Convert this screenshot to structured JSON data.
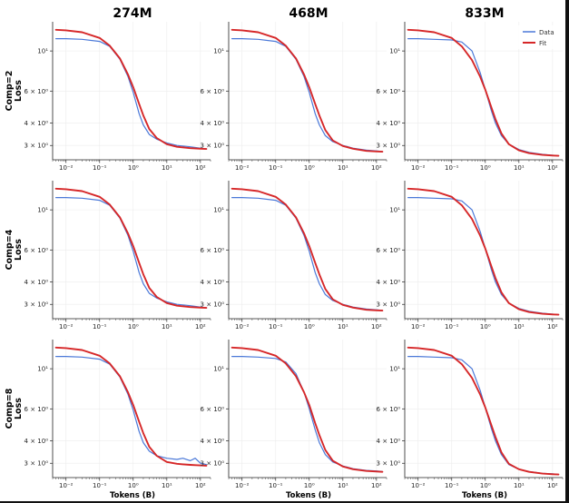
{
  "figure": {
    "column_titles": [
      "274M",
      "468M",
      "833M"
    ],
    "row_labels": [
      {
        "line1": "Comp=2",
        "line2": "Loss"
      },
      {
        "line1": "Comp=4",
        "line2": "Loss"
      },
      {
        "line1": "Comp=8",
        "line2": "Loss"
      }
    ],
    "xlabel": "Tokens (B)",
    "legend": [
      {
        "label": "Data",
        "color": "#4a78d8"
      },
      {
        "label": "Fit",
        "color": "#d62728"
      }
    ]
  },
  "chart_data": {
    "type": "line",
    "layout": "3x3 grid of subplots",
    "x_scale": "log",
    "y_scale": "log",
    "xlim": [
      0.004,
      200
    ],
    "ylim": [
      2.5,
      14.5
    ],
    "x_ticks": [
      {
        "value": 0.01,
        "label": "10⁻²"
      },
      {
        "value": 0.1,
        "label": "10⁻¹"
      },
      {
        "value": 1,
        "label": "10⁰"
      },
      {
        "value": 10,
        "label": "10¹"
      },
      {
        "value": 100,
        "label": "10²"
      }
    ],
    "y_ticks": [
      {
        "value": 10,
        "label": "10¹"
      },
      {
        "value": 6,
        "label": "6 × 10⁰"
      },
      {
        "value": 4,
        "label": "4 × 10⁰"
      },
      {
        "value": 3,
        "label": "3 × 10⁰"
      }
    ],
    "grid": true,
    "legend_location": "top-right of top-right subplot",
    "series_colors": {
      "Data": "#4a78d8",
      "Fit": "#d62728"
    },
    "panels": [
      {
        "row": 0,
        "col": 0,
        "title": "274M",
        "ylabel": "Comp=2 Loss",
        "series": [
          {
            "name": "Data",
            "x": [
              0.005,
              0.01,
              0.03,
              0.1,
              0.2,
              0.4,
              0.7,
              1.0,
              1.5,
              2.0,
              3.0,
              5.0,
              10,
              20,
              50,
              100,
              150
            ],
            "y": [
              11.7,
              11.7,
              11.6,
              11.3,
              10.6,
              9.0,
              7.2,
              5.9,
              4.5,
              3.9,
              3.45,
              3.25,
              3.1,
              3.0,
              2.95,
              2.9,
              2.88
            ]
          },
          {
            "name": "Fit",
            "x": [
              0.005,
              0.01,
              0.03,
              0.1,
              0.2,
              0.4,
              0.7,
              1.0,
              1.5,
              2.0,
              3.0,
              5.0,
              10,
              20,
              50,
              100,
              150
            ],
            "y": [
              13.1,
              13.0,
              12.7,
              11.8,
              10.7,
              9.1,
              7.4,
              6.3,
              5.1,
              4.4,
              3.7,
              3.3,
              3.05,
              2.95,
              2.9,
              2.88,
              2.87
            ]
          }
        ]
      },
      {
        "row": 0,
        "col": 1,
        "title": "468M",
        "series": [
          {
            "name": "Data",
            "x": [
              0.005,
              0.01,
              0.03,
              0.1,
              0.2,
              0.4,
              0.7,
              1.0,
              1.5,
              2.0,
              3.0,
              5.0,
              10,
              20,
              50,
              100,
              150
            ],
            "y": [
              11.7,
              11.7,
              11.6,
              11.3,
              10.6,
              9.0,
              7.2,
              5.9,
              4.5,
              3.9,
              3.4,
              3.15,
              3.0,
              2.9,
              2.83,
              2.8,
              2.78
            ]
          },
          {
            "name": "Fit",
            "x": [
              0.005,
              0.01,
              0.03,
              0.1,
              0.2,
              0.4,
              0.7,
              1.0,
              1.5,
              2.0,
              3.0,
              5.0,
              10,
              20,
              50,
              100,
              150
            ],
            "y": [
              13.1,
              13.0,
              12.7,
              11.8,
              10.7,
              9.1,
              7.4,
              6.3,
              5.1,
              4.4,
              3.65,
              3.2,
              2.98,
              2.88,
              2.8,
              2.78,
              2.77
            ]
          }
        ]
      },
      {
        "row": 0,
        "col": 2,
        "title": "833M",
        "series": [
          {
            "name": "Data",
            "x": [
              0.005,
              0.01,
              0.03,
              0.1,
              0.2,
              0.4,
              0.7,
              1.0,
              1.5,
              2.0,
              3.0,
              5.0,
              10,
              20,
              50,
              100,
              150
            ],
            "y": [
              11.7,
              11.7,
              11.6,
              11.5,
              11.2,
              10.0,
              7.6,
              6.1,
              4.7,
              4.0,
              3.4,
              3.05,
              2.85,
              2.75,
              2.68,
              2.65,
              2.63
            ]
          },
          {
            "name": "Fit",
            "x": [
              0.005,
              0.01,
              0.03,
              0.1,
              0.2,
              0.4,
              0.7,
              1.0,
              1.5,
              2.0,
              3.0,
              5.0,
              10,
              20,
              50,
              100,
              150
            ],
            "y": [
              13.1,
              13.0,
              12.7,
              11.8,
              10.6,
              8.9,
              7.2,
              6.1,
              4.9,
              4.2,
              3.5,
              3.05,
              2.82,
              2.72,
              2.66,
              2.64,
              2.63
            ]
          }
        ]
      },
      {
        "row": 1,
        "col": 0,
        "ylabel": "Comp=4 Loss",
        "series": [
          {
            "name": "Data",
            "x": [
              0.005,
              0.01,
              0.03,
              0.1,
              0.2,
              0.4,
              0.7,
              1.0,
              1.5,
              2.0,
              3.0,
              5.0,
              10,
              20,
              50,
              100,
              150
            ],
            "y": [
              11.7,
              11.7,
              11.6,
              11.3,
              10.6,
              9.0,
              7.2,
              5.9,
              4.5,
              3.9,
              3.45,
              3.25,
              3.1,
              3.0,
              2.95,
              2.9,
              2.88
            ]
          },
          {
            "name": "Fit",
            "x": [
              0.005,
              0.01,
              0.03,
              0.1,
              0.2,
              0.4,
              0.7,
              1.0,
              1.5,
              2.0,
              3.0,
              5.0,
              10,
              20,
              50,
              100,
              150
            ],
            "y": [
              13.1,
              13.0,
              12.7,
              11.8,
              10.7,
              9.1,
              7.4,
              6.3,
              5.1,
              4.4,
              3.7,
              3.3,
              3.05,
              2.95,
              2.9,
              2.88,
              2.87
            ]
          }
        ]
      },
      {
        "row": 1,
        "col": 1,
        "series": [
          {
            "name": "Data",
            "x": [
              0.005,
              0.01,
              0.03,
              0.1,
              0.2,
              0.4,
              0.7,
              1.0,
              1.5,
              2.0,
              3.0,
              5.0,
              10,
              20,
              50,
              100,
              150
            ],
            "y": [
              11.7,
              11.7,
              11.6,
              11.3,
              10.6,
              9.0,
              7.2,
              5.9,
              4.5,
              3.9,
              3.4,
              3.15,
              3.0,
              2.9,
              2.83,
              2.8,
              2.78
            ]
          },
          {
            "name": "Fit",
            "x": [
              0.005,
              0.01,
              0.03,
              0.1,
              0.2,
              0.4,
              0.7,
              1.0,
              1.5,
              2.0,
              3.0,
              5.0,
              10,
              20,
              50,
              100,
              150
            ],
            "y": [
              13.1,
              13.0,
              12.7,
              11.8,
              10.7,
              9.1,
              7.4,
              6.3,
              5.1,
              4.4,
              3.65,
              3.2,
              2.98,
              2.88,
              2.8,
              2.78,
              2.77
            ]
          }
        ]
      },
      {
        "row": 1,
        "col": 2,
        "series": [
          {
            "name": "Data",
            "x": [
              0.005,
              0.01,
              0.03,
              0.1,
              0.2,
              0.4,
              0.7,
              1.0,
              1.5,
              2.0,
              3.0,
              5.0,
              10,
              20,
              50,
              100,
              150
            ],
            "y": [
              11.7,
              11.7,
              11.6,
              11.5,
              11.2,
              10.0,
              7.6,
              6.1,
              4.7,
              4.0,
              3.4,
              3.05,
              2.85,
              2.75,
              2.68,
              2.65,
              2.63
            ]
          },
          {
            "name": "Fit",
            "x": [
              0.005,
              0.01,
              0.03,
              0.1,
              0.2,
              0.4,
              0.7,
              1.0,
              1.5,
              2.0,
              3.0,
              5.0,
              10,
              20,
              50,
              100,
              150
            ],
            "y": [
              13.1,
              13.0,
              12.7,
              11.8,
              10.6,
              8.9,
              7.2,
              6.1,
              4.9,
              4.2,
              3.5,
              3.05,
              2.82,
              2.72,
              2.66,
              2.64,
              2.63
            ]
          }
        ]
      },
      {
        "row": 2,
        "col": 0,
        "ylabel": "Comp=8 Loss",
        "series": [
          {
            "name": "Data",
            "x": [
              0.005,
              0.01,
              0.03,
              0.1,
              0.2,
              0.4,
              0.7,
              1.0,
              1.5,
              2.0,
              3.0,
              5.0,
              10,
              20,
              30,
              50,
              70,
              100,
              150
            ],
            "y": [
              11.7,
              11.7,
              11.6,
              11.3,
              10.6,
              9.0,
              7.2,
              5.9,
              4.5,
              3.9,
              3.5,
              3.3,
              3.2,
              3.15,
              3.2,
              3.1,
              3.2,
              3.0,
              2.95
            ]
          },
          {
            "name": "Fit",
            "x": [
              0.005,
              0.01,
              0.03,
              0.1,
              0.2,
              0.4,
              0.7,
              1.0,
              1.5,
              2.0,
              3.0,
              5.0,
              10,
              20,
              30,
              50,
              70,
              100,
              150
            ],
            "y": [
              13.1,
              13.0,
              12.7,
              11.8,
              10.7,
              9.1,
              7.4,
              6.3,
              5.1,
              4.4,
              3.7,
              3.3,
              3.05,
              2.98,
              2.96,
              2.94,
              2.93,
              2.92,
              2.91
            ]
          }
        ]
      },
      {
        "row": 2,
        "col": 1,
        "series": [
          {
            "name": "Data",
            "x": [
              0.005,
              0.01,
              0.03,
              0.1,
              0.2,
              0.4,
              0.7,
              1.0,
              1.5,
              2.0,
              3.0,
              5.0,
              10,
              20,
              50,
              100,
              150
            ],
            "y": [
              11.7,
              11.7,
              11.6,
              11.4,
              10.9,
              9.4,
              7.4,
              6.0,
              4.6,
              3.9,
              3.35,
              3.05,
              2.9,
              2.8,
              2.74,
              2.72,
              2.7
            ]
          },
          {
            "name": "Fit",
            "x": [
              0.005,
              0.01,
              0.03,
              0.1,
              0.2,
              0.4,
              0.7,
              1.0,
              1.5,
              2.0,
              3.0,
              5.0,
              10,
              20,
              50,
              100,
              150
            ],
            "y": [
              13.1,
              13.0,
              12.7,
              11.8,
              10.7,
              9.1,
              7.4,
              6.3,
              5.0,
              4.3,
              3.55,
              3.1,
              2.88,
              2.78,
              2.72,
              2.7,
              2.69
            ]
          }
        ]
      },
      {
        "row": 2,
        "col": 2,
        "series": [
          {
            "name": "Data",
            "x": [
              0.005,
              0.01,
              0.03,
              0.1,
              0.2,
              0.4,
              0.7,
              1.0,
              1.5,
              2.0,
              3.0,
              5.0,
              10,
              20,
              50,
              100,
              150
            ],
            "y": [
              11.7,
              11.7,
              11.6,
              11.5,
              11.2,
              10.0,
              7.6,
              6.1,
              4.7,
              4.0,
              3.35,
              2.95,
              2.78,
              2.7,
              2.64,
              2.62,
              2.6
            ]
          },
          {
            "name": "Fit",
            "x": [
              0.005,
              0.01,
              0.03,
              0.1,
              0.2,
              0.4,
              0.7,
              1.0,
              1.5,
              2.0,
              3.0,
              5.0,
              10,
              20,
              50,
              100,
              150
            ],
            "y": [
              13.1,
              13.0,
              12.7,
              11.8,
              10.6,
              8.9,
              7.2,
              6.1,
              4.9,
              4.2,
              3.45,
              2.98,
              2.78,
              2.69,
              2.63,
              2.61,
              2.6
            ]
          }
        ]
      }
    ]
  }
}
